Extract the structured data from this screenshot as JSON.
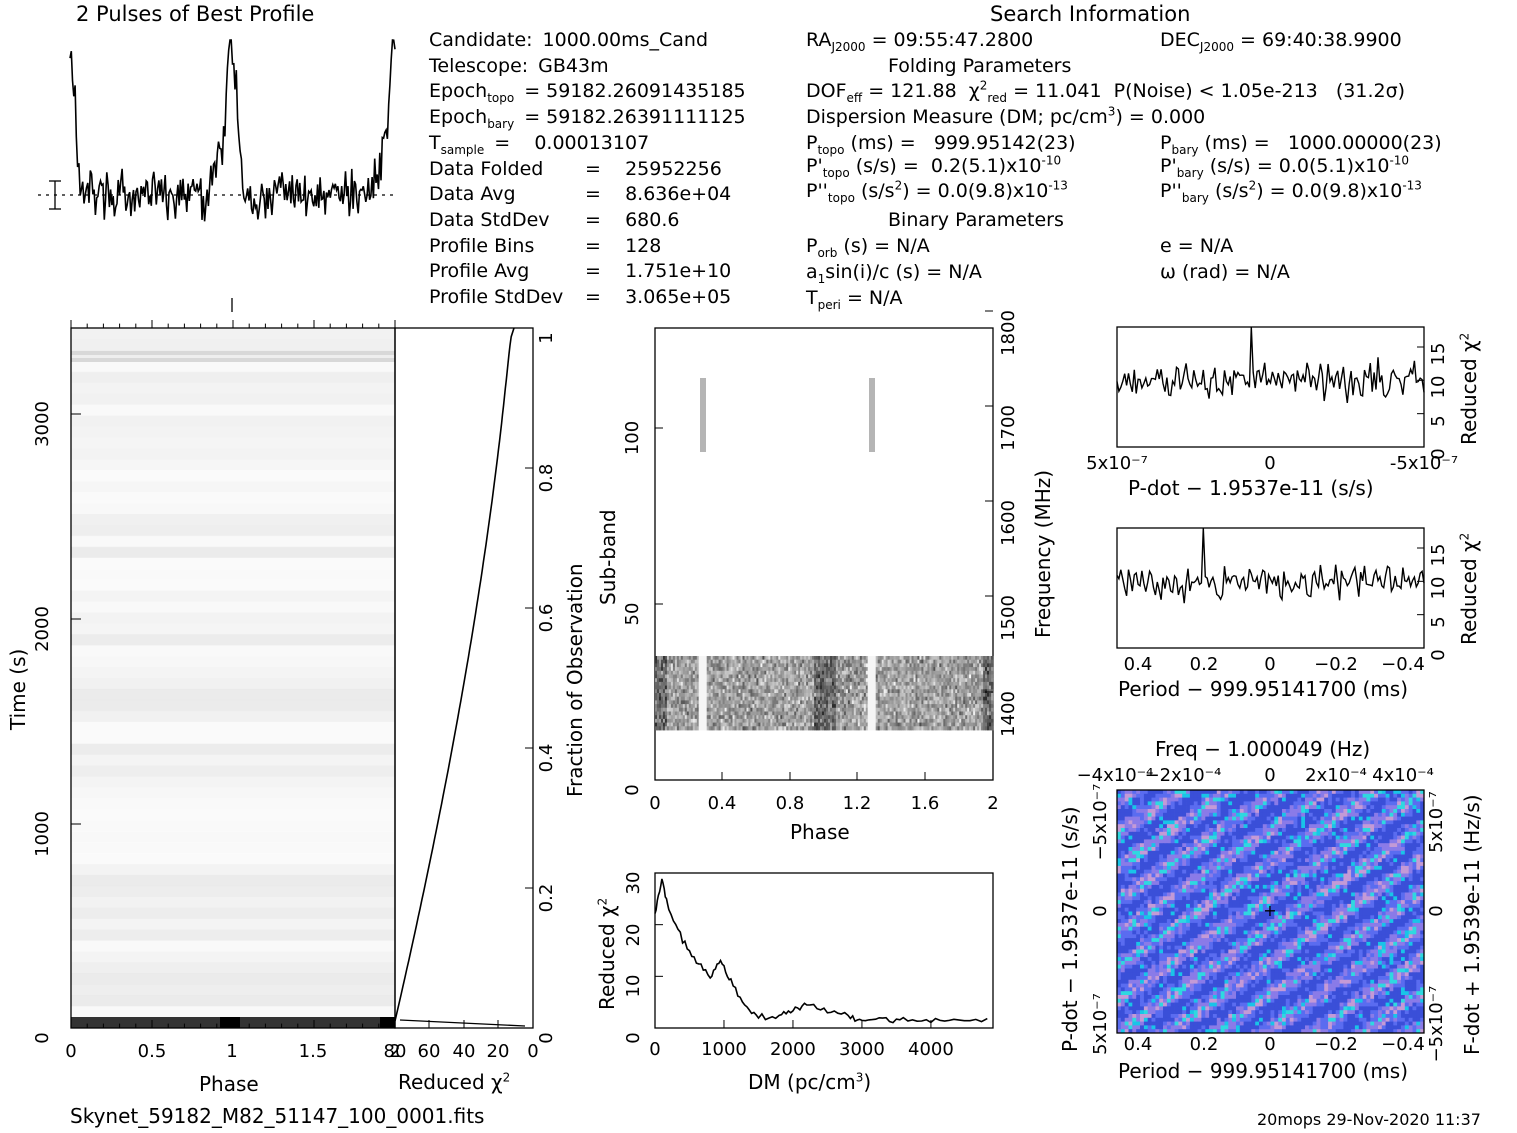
{
  "header": {
    "profile_title": "2 Pulses of Best Profile",
    "search_title": "Search Information",
    "folding_title": "Folding Parameters",
    "binary_title": "Binary Parameters"
  },
  "info_left": [
    {
      "label": "Candidate:",
      "value": "1000.00ms_Cand"
    },
    {
      "label": "Telescope:",
      "value": "GB43m"
    },
    {
      "label": "Epoch",
      "sub": "topo",
      "value": "= 59182.26091435185"
    },
    {
      "label": "Epoch",
      "sub": "bary",
      "value": "= 59182.26391111125"
    },
    {
      "label": "T",
      "sub": "sample",
      "value": "=    0.00013107"
    },
    {
      "label": "Data Folded",
      "value": "=    25952256"
    },
    {
      "label": "Data Avg",
      "value": "=    8.636e+04"
    },
    {
      "label": "Data StdDev",
      "value": "=    680.6"
    },
    {
      "label": "Profile Bins",
      "value": "=    128"
    },
    {
      "label": "Profile Avg",
      "value": "=    1.751e+10"
    },
    {
      "label": "Profile StdDev",
      "value": "=    3.065e+05"
    }
  ],
  "info_mid": {
    "ra": "= 09:55:47.2800",
    "dec": "= 69:40:38.9900",
    "dof": "= 121.88",
    "chi2": "= 11.041",
    "pnoise": "P(Noise) < 1.05e-213   (31.2σ)",
    "dm": "Dispersion Measure (DM; pc/cm",
    "dm_value": ") = 0.000",
    "ptopo": "(ms) =   999.95142(23)",
    "pbary": "(ms) =   1000.00000(23)",
    "pdtopo": "(s/s) =  0.2(5.1)x10",
    "pdtopo_exp": "-10",
    "pdbary": "(s/s) = 0.0(5.1)x10",
    "pdbary_exp": "-10",
    "pddtopo": "(s/s",
    "pddtopo_val": ") = 0.0(9.8)x10",
    "pddtopo_exp": "-13",
    "pddbary": "(s/s",
    "pddbary_val": ") = 0.0(9.8)x10",
    "pddbary_exp": "-13",
    "porb": "(s) = N/A",
    "e": "e = N/A",
    "a1": "sin(i)/c (s) = N/A",
    "omega": "ω (rad) = N/A",
    "tperi": "= N/A"
  },
  "footer": {
    "filename": "Skynet_59182_M82_51147_100_0001.fits",
    "stamp": "20mops 29-Nov-2020 11:37"
  },
  "chart_data": [
    {
      "type": "line",
      "title": "2 Pulses of Best Profile",
      "x_range": [
        0,
        2
      ],
      "description_series": "pulse profile, peaks near phase 0, 1, 2"
    },
    {
      "type": "heatmap",
      "xlabel": "Phase",
      "ylabel": "Time (s)",
      "x_ticks": [
        "0",
        "0.5",
        "1",
        "1.5",
        "2"
      ],
      "y_ticks": [
        "0",
        "1000",
        "2000",
        "3000"
      ],
      "xlim": [
        0,
        2
      ],
      "ylim": [
        0,
        3400
      ]
    },
    {
      "type": "line",
      "xlabel": "Reduced χ2",
      "ylabel": "Fraction of Observation",
      "x_ticks": [
        "80",
        "60",
        "40",
        "20",
        "0"
      ],
      "y_ticks": [
        "0",
        "0.2",
        "0.4",
        "0.6",
        "0.8",
        "1"
      ],
      "xlim": [
        80,
        0
      ],
      "ylim": [
        0,
        1
      ]
    },
    {
      "type": "heatmap",
      "xlabel": "Phase",
      "ylabel": "Sub-band",
      "y2label": "Frequency (MHz)",
      "x_ticks": [
        "0",
        "0.4",
        "0.8",
        "1.2",
        "1.6",
        "2"
      ],
      "y_ticks": [
        "0",
        "50",
        "100"
      ],
      "y2_ticks": [
        "1400",
        "1500",
        "1600",
        "1700",
        "1800"
      ],
      "xlim": [
        0,
        2
      ],
      "ylim": [
        0,
        128
      ]
    },
    {
      "type": "line",
      "xlabel": "DM (pc/cm3)",
      "ylabel": "Reduced χ2",
      "x_ticks": [
        "0",
        "1000",
        "2000",
        "3000",
        "4000"
      ],
      "y_ticks": [
        "0",
        "10",
        "20",
        "30"
      ],
      "xlim": [
        0,
        4900
      ],
      "ylim": [
        0,
        30
      ],
      "x": [
        0,
        100,
        200,
        400,
        600,
        800,
        950,
        1100,
        1300,
        1500,
        1800,
        2000,
        2200,
        2500,
        2800,
        3000,
        3300,
        3600,
        4000,
        4400,
        4900
      ],
      "y": [
        22,
        29,
        23,
        17,
        13,
        10,
        13,
        9,
        4,
        2,
        2.5,
        3.5,
        4.5,
        3.5,
        2.5,
        1.5,
        1.8,
        1.5,
        1.6,
        1.4,
        1.5
      ]
    },
    {
      "type": "line",
      "xlabel": "P-dot − 1.9537e-11 (s/s)",
      "ylabel": "Reduced χ2",
      "x_ticks": [
        "5x10-7",
        "0",
        "-5x10-7"
      ],
      "y_ticks": [
        "0",
        "5",
        "10",
        "15"
      ],
      "ylim": [
        0,
        18
      ]
    },
    {
      "type": "line",
      "xlabel": "Period − 999.95141700 (ms)",
      "ylabel": "Reduced χ2",
      "x_ticks": [
        "0.4",
        "0.2",
        "0",
        "−0.2",
        "−0.4"
      ],
      "y_ticks": [
        "0",
        "5",
        "10",
        "15"
      ],
      "ylim": [
        0,
        18
      ]
    },
    {
      "type": "heatmap",
      "title": "Freq − 1.000049 (Hz)",
      "xlabel": "Period − 999.95141700 (ms)",
      "ylabel": "P-dot − 1.9537e-11 (s/s)",
      "y2label": "F-dot + 1.9539e-11 (Hz/s)",
      "x_ticks": [
        "0.4",
        "0.2",
        "0",
        "−0.2",
        "−0.4"
      ],
      "x2_ticks": [
        "−4x10-4",
        "−2x10-4",
        "0",
        "2x10-4",
        "4x10-4"
      ],
      "y_ticks": [
        "5x10-7",
        "0",
        "−5x10-7"
      ],
      "y2_ticks": [
        "−5x10-7",
        "0",
        "5x10-7"
      ]
    }
  ]
}
